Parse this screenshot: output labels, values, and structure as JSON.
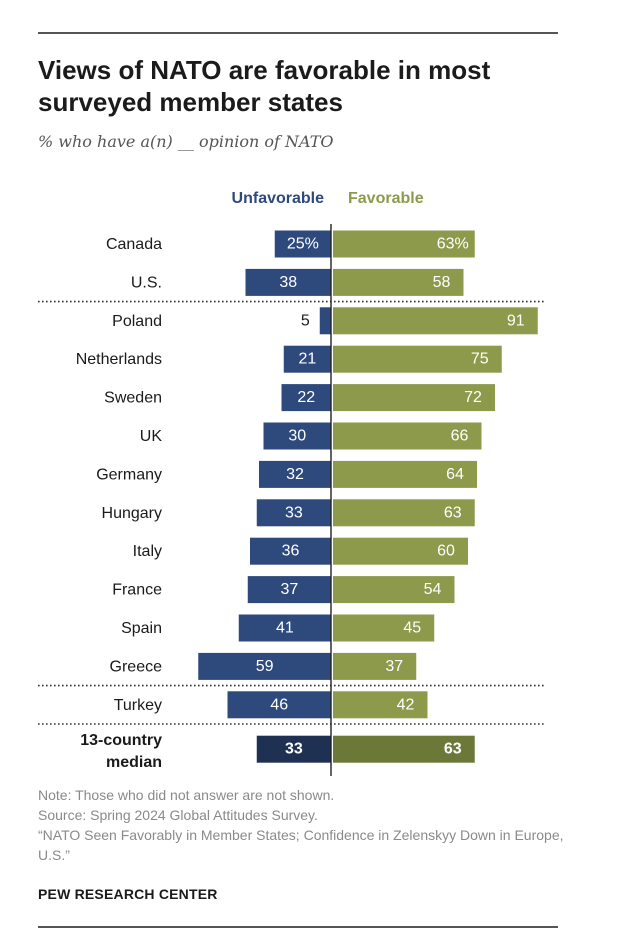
{
  "chart_data": {
    "type": "bar",
    "title": "Views of NATO are favorable in most surveyed member states",
    "subtitle": "% who have a(n) __ opinion of NATO",
    "legend": [
      "Unfavorable",
      "Favorable"
    ],
    "categories": [
      "Canada",
      "U.S.",
      "Poland",
      "Netherlands",
      "Sweden",
      "UK",
      "Germany",
      "Hungary",
      "Italy",
      "France",
      "Spain",
      "Greece",
      "Turkey",
      "13-country median"
    ],
    "category_lines": [
      [
        "Canada"
      ],
      [
        "U.S."
      ],
      [
        "Poland"
      ],
      [
        "Netherlands"
      ],
      [
        "Sweden"
      ],
      [
        "UK"
      ],
      [
        "Germany"
      ],
      [
        "Hungary"
      ],
      [
        "Italy"
      ],
      [
        "France"
      ],
      [
        "Spain"
      ],
      [
        "Greece"
      ],
      [
        "Turkey"
      ],
      [
        "13-country",
        "median"
      ]
    ],
    "series": [
      {
        "name": "Unfavorable",
        "color": "#2e4a7d",
        "values": [
          25,
          38,
          5,
          21,
          22,
          30,
          32,
          33,
          36,
          37,
          41,
          59,
          46,
          33
        ],
        "labels": [
          "25%",
          "38",
          "5",
          "21",
          "22",
          "30",
          "32",
          "33",
          "36",
          "37",
          "41",
          "59",
          "46",
          "33"
        ]
      },
      {
        "name": "Favorable",
        "color": "#8d9a4c",
        "values": [
          63,
          58,
          91,
          75,
          72,
          66,
          64,
          63,
          60,
          54,
          45,
          37,
          42,
          63
        ],
        "labels": [
          "63%",
          "58",
          "91",
          "75",
          "72",
          "66",
          "64",
          "63",
          "60",
          "54",
          "45",
          "37",
          "42",
          "63"
        ]
      }
    ],
    "median_colors": {
      "Unfavorable": "#1e3152",
      "Favorable": "#6b7838"
    },
    "dotted_separators_after": [
      "U.S.",
      "Greece",
      "Turkey"
    ],
    "bold_categories": [
      "13-country median"
    ]
  },
  "note": {
    "line1": "Note: Those who did not answer are not shown.",
    "line2": "Source: Spring 2024 Global Attitudes Survey.",
    "line3": "“NATO Seen Favorably in Member States; Confidence in Zelenskyy Down in Europe, U.S.”"
  },
  "brand": "PEW RESEARCH CENTER"
}
